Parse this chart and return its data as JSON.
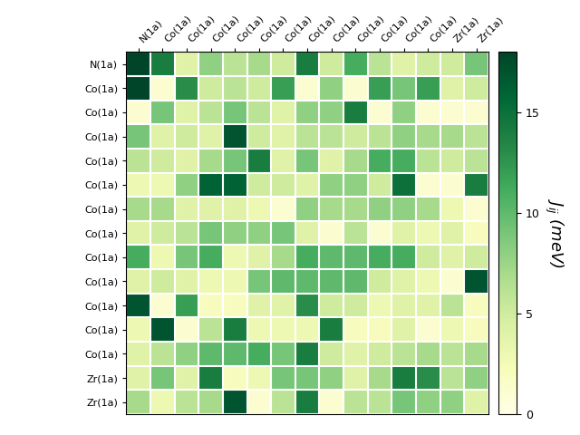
{
  "labels": [
    "N(1a)",
    "Co(1a)",
    "Co(1a)",
    "Co(1a)",
    "Co(1a)",
    "Co(1a)",
    "Co(1a)",
    "Co(1a)",
    "Co(1a)",
    "Co(1a)",
    "Co(1a)",
    "Co(1a)",
    "Co(1a)",
    "Zr(1a)",
    "Zr(1a)"
  ],
  "matrix": [
    [
      18,
      14,
      4,
      8,
      6,
      7,
      5,
      14,
      5,
      11,
      6,
      4,
      5,
      5,
      9
    ],
    [
      18,
      1,
      13,
      5,
      6,
      5,
      12,
      1,
      8,
      1,
      12,
      9,
      12,
      4,
      5
    ],
    [
      1,
      9,
      4,
      6,
      9,
      6,
      4,
      8,
      8,
      14,
      1,
      8,
      1,
      1,
      1
    ],
    [
      9,
      4,
      5,
      4,
      17,
      5,
      4,
      6,
      6,
      5,
      6,
      8,
      7,
      7,
      6
    ],
    [
      6,
      5,
      4,
      7,
      9,
      14,
      4,
      9,
      4,
      7,
      11,
      11,
      6,
      5,
      6
    ],
    [
      3,
      3,
      8,
      16,
      16,
      5,
      5,
      4,
      8,
      8,
      5,
      15,
      1,
      1,
      14
    ],
    [
      7,
      7,
      4,
      4,
      4,
      3,
      1,
      8,
      7,
      7,
      8,
      8,
      7,
      3,
      1
    ],
    [
      4,
      5,
      6,
      9,
      8,
      8,
      9,
      4,
      1,
      6,
      1,
      4,
      3,
      4,
      2
    ],
    [
      11,
      3,
      9,
      11,
      3,
      4,
      7,
      11,
      10,
      10,
      11,
      11,
      5,
      4,
      5
    ],
    [
      4,
      5,
      4,
      3,
      3,
      9,
      10,
      10,
      10,
      10,
      5,
      4,
      3,
      1,
      17
    ],
    [
      17,
      1,
      12,
      2,
      2,
      4,
      4,
      13,
      5,
      5,
      3,
      4,
      4,
      6,
      2
    ],
    [
      3,
      17,
      1,
      6,
      14,
      3,
      3,
      3,
      14,
      2,
      2,
      4,
      1,
      3,
      2
    ],
    [
      4,
      6,
      8,
      10,
      10,
      11,
      9,
      14,
      5,
      4,
      5,
      6,
      7,
      6,
      7
    ],
    [
      4,
      9,
      4,
      14,
      2,
      3,
      9,
      9,
      8,
      4,
      7,
      14,
      13,
      6,
      8
    ],
    [
      7,
      3,
      6,
      7,
      17,
      1,
      6,
      14,
      1,
      6,
      6,
      9,
      8,
      8,
      4
    ]
  ],
  "vmin": 0,
  "vmax": 18,
  "cmap": "YlGn",
  "colorbar_label": "$J_{ij}$ (meV)",
  "colorbar_ticks": [
    0,
    5,
    10,
    15
  ],
  "figsize": [
    6.4,
    4.8
  ],
  "dpi": 100
}
